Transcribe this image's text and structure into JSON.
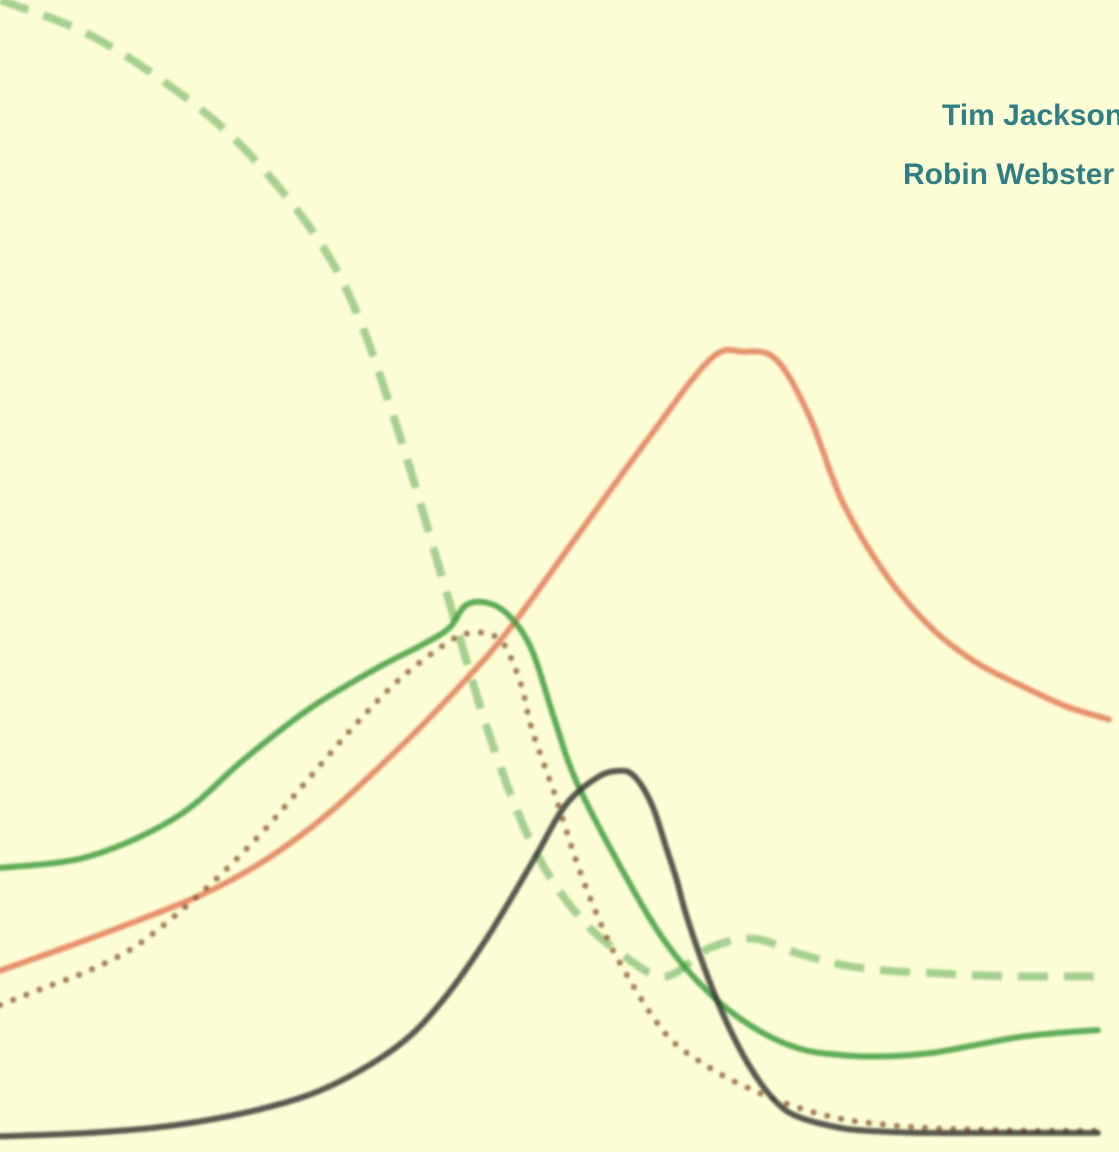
{
  "chart_data": {
    "type": "line",
    "title": "",
    "xlabel": "",
    "ylabel": "",
    "grid": false,
    "xlim": [
      0,
      100
    ],
    "ylim": [
      0,
      100
    ],
    "series": [
      {
        "color": "#e07a55",
        "dash": "solid",
        "x": [
          0,
          10,
          20,
          28,
          36,
          42,
          46,
          52,
          58,
          64,
          67,
          70,
          73,
          76,
          80,
          84,
          88,
          92,
          96,
          100
        ],
        "y": [
          15,
          18.5,
          22.5,
          27.5,
          34.5,
          40.5,
          45,
          53,
          61,
          68.5,
          69.2,
          68.5,
          63.5,
          56,
          49.5,
          45,
          42,
          40,
          38.2,
          37
        ]
      },
      {
        "color": "#3a9a3a",
        "dash": "solid",
        "x": [
          0,
          8,
          16,
          22,
          28,
          34,
          38,
          40.5,
          42,
          44,
          46,
          48,
          50,
          52,
          56,
          60,
          64,
          68,
          72,
          76,
          80,
          84,
          88,
          92,
          96,
          99
        ],
        "y": [
          24,
          25,
          28.5,
          33.5,
          38,
          41.5,
          43.5,
          45,
          47,
          47.2,
          46,
          43,
          37,
          31.5,
          24,
          17.5,
          13,
          10,
          8.2,
          7.6,
          7.5,
          7.8,
          8.5,
          9.2,
          9.6,
          9.8
        ]
      },
      {
        "color": "#3a9a3a",
        "dash": "dashed",
        "x": [
          0,
          8,
          16,
          22,
          28,
          32,
          36,
          40,
          44,
          48,
          52,
          56,
          60,
          64,
          68,
          72,
          76,
          80,
          84,
          88,
          92,
          96,
          99
        ],
        "y": [
          100,
          97,
          92,
          87,
          80,
          73,
          62,
          49,
          36,
          26,
          20,
          16.5,
          14.5,
          17,
          17.8,
          16.5,
          15.5,
          15,
          14.8,
          14.6,
          14.5,
          14.5,
          14.5
        ]
      },
      {
        "color": "#8b5a2b",
        "dash": "dotted",
        "x": [
          0,
          4,
          8,
          12,
          16,
          20,
          24,
          28,
          32,
          36,
          40,
          42,
          44,
          45.5,
          47,
          48,
          50,
          52,
          54,
          56,
          60,
          64,
          68,
          72,
          76,
          80,
          84,
          88,
          92,
          96,
          99
        ],
        "y": [
          12,
          13.5,
          15,
          17,
          20,
          23.5,
          27.5,
          32,
          36.5,
          40.5,
          43.5,
          44.5,
          44.5,
          43.5,
          40,
          36,
          30.5,
          24.5,
          19.5,
          15.5,
          9.5,
          6.5,
          4.5,
          3,
          2,
          1.5,
          1.2,
          1.1,
          1,
          1,
          1
        ]
      },
      {
        "color": "#333333",
        "dash": "solid",
        "x": [
          0,
          8,
          16,
          24,
          30,
          36,
          40,
          44,
          48,
          51,
          54,
          56,
          57,
          58,
          59,
          60,
          61,
          62,
          64,
          66,
          68,
          70,
          72,
          76,
          80,
          84,
          88,
          92,
          96,
          99
        ],
        "y": [
          0.5,
          0.8,
          1.5,
          3,
          5,
          8.5,
          12.5,
          18,
          24.5,
          29.5,
          32,
          32.5,
          32.2,
          31,
          29,
          26,
          23,
          19.5,
          14,
          9.5,
          6,
          3.5,
          2.2,
          1.2,
          0.9,
          0.8,
          0.8,
          0.8,
          0.8,
          0.8
        ]
      }
    ]
  },
  "credits": {
    "line1": "Tim Jackson",
    "line2": "Robin Webster"
  }
}
